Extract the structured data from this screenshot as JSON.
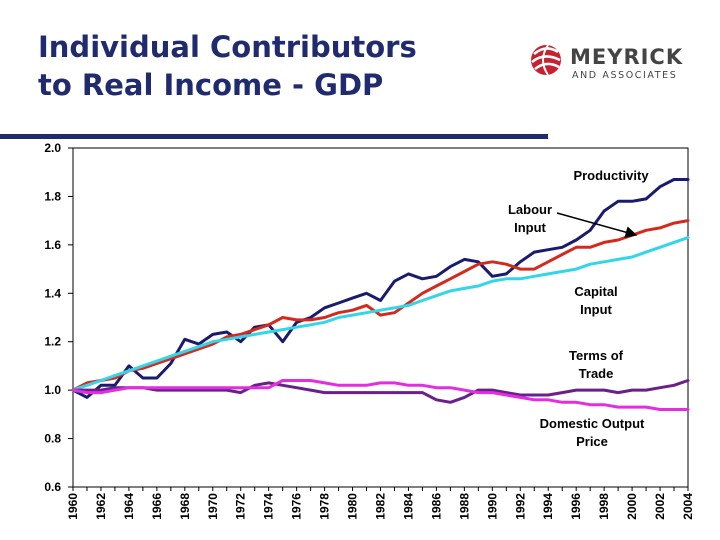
{
  "header": {
    "title_line1": "Individual Contributors",
    "title_line2": "to Real Income - GDP",
    "logo_name": "MEYRICK",
    "logo_sub": "AND ASSOCIATES",
    "logo_icon": "red-globe-icon",
    "title_color": "#1f2b6e",
    "logo_color": "#c8202f"
  },
  "chart_data": {
    "type": "line",
    "title": "",
    "xlabel": "",
    "ylabel": "",
    "x": [
      1960,
      1961,
      1962,
      1963,
      1964,
      1965,
      1966,
      1967,
      1968,
      1969,
      1970,
      1971,
      1972,
      1973,
      1974,
      1975,
      1976,
      1977,
      1978,
      1979,
      1980,
      1981,
      1982,
      1983,
      1984,
      1985,
      1986,
      1987,
      1988,
      1989,
      1990,
      1991,
      1992,
      1993,
      1994,
      1995,
      1996,
      1997,
      1998,
      1999,
      2000,
      2001,
      2002,
      2003,
      2004
    ],
    "xticks": [
      "1960",
      "1962",
      "1964",
      "1966",
      "1968",
      "1970",
      "1972",
      "1974",
      "1976",
      "1978",
      "1980",
      "1982",
      "1984",
      "1986",
      "1988",
      "1990",
      "1992",
      "1994",
      "1996",
      "1998",
      "2000",
      "2002",
      "2004"
    ],
    "yticks": [
      "0.6",
      "0.8",
      "1.0",
      "1.2",
      "1.4",
      "1.6",
      "1.8",
      "2.0"
    ],
    "ylim": [
      0.6,
      2.0
    ],
    "xlim": [
      1960,
      2004
    ],
    "grid": false,
    "series": [
      {
        "label": "Productivity",
        "color": "#1a1a6e",
        "values": [
          1.0,
          0.97,
          1.02,
          1.02,
          1.1,
          1.05,
          1.05,
          1.11,
          1.21,
          1.19,
          1.23,
          1.24,
          1.2,
          1.26,
          1.27,
          1.2,
          1.28,
          1.3,
          1.34,
          1.36,
          1.38,
          1.4,
          1.37,
          1.45,
          1.48,
          1.46,
          1.47,
          1.51,
          1.54,
          1.53,
          1.47,
          1.48,
          1.53,
          1.57,
          1.58,
          1.59,
          1.62,
          1.66,
          1.74,
          1.78,
          1.78,
          1.79,
          1.84,
          1.87,
          1.87
        ]
      },
      {
        "label": "Labour Input",
        "color": "#d42a1e",
        "values": [
          1.0,
          1.03,
          1.04,
          1.05,
          1.08,
          1.09,
          1.11,
          1.13,
          1.15,
          1.17,
          1.19,
          1.22,
          1.23,
          1.25,
          1.27,
          1.3,
          1.29,
          1.29,
          1.3,
          1.32,
          1.33,
          1.35,
          1.31,
          1.32,
          1.36,
          1.4,
          1.43,
          1.46,
          1.49,
          1.52,
          1.53,
          1.52,
          1.5,
          1.5,
          1.53,
          1.56,
          1.59,
          1.59,
          1.61,
          1.62,
          1.64,
          1.66,
          1.67,
          1.69,
          1.7
        ]
      },
      {
        "label": "Capital Input",
        "color": "#33d6e8",
        "values": [
          1.0,
          1.02,
          1.04,
          1.06,
          1.08,
          1.1,
          1.12,
          1.14,
          1.16,
          1.18,
          1.2,
          1.21,
          1.22,
          1.23,
          1.24,
          1.25,
          1.26,
          1.27,
          1.28,
          1.3,
          1.31,
          1.32,
          1.33,
          1.34,
          1.35,
          1.37,
          1.39,
          1.41,
          1.42,
          1.43,
          1.45,
          1.46,
          1.46,
          1.47,
          1.48,
          1.49,
          1.5,
          1.52,
          1.53,
          1.54,
          1.55,
          1.57,
          1.59,
          1.61,
          1.63
        ]
      },
      {
        "label": "Terms of Trade",
        "color": "#6a1f8a",
        "values": [
          1.0,
          1.0,
          1.0,
          1.01,
          1.01,
          1.01,
          1.0,
          1.0,
          1.0,
          1.0,
          1.0,
          1.0,
          0.99,
          1.02,
          1.03,
          1.02,
          1.01,
          1.0,
          0.99,
          0.99,
          0.99,
          0.99,
          0.99,
          0.99,
          0.99,
          0.99,
          0.96,
          0.95,
          0.97,
          1.0,
          1.0,
          0.99,
          0.98,
          0.98,
          0.98,
          0.99,
          1.0,
          1.0,
          1.0,
          0.99,
          1.0,
          1.0,
          1.01,
          1.02,
          1.04
        ]
      },
      {
        "label": "Domestic Output Price",
        "color": "#e22ee0",
        "values": [
          1.0,
          0.99,
          0.99,
          1.0,
          1.01,
          1.01,
          1.01,
          1.01,
          1.01,
          1.01,
          1.01,
          1.01,
          1.01,
          1.01,
          1.01,
          1.04,
          1.04,
          1.04,
          1.03,
          1.02,
          1.02,
          1.02,
          1.03,
          1.03,
          1.02,
          1.02,
          1.01,
          1.01,
          1.0,
          0.99,
          0.99,
          0.98,
          0.97,
          0.96,
          0.96,
          0.95,
          0.95,
          0.94,
          0.94,
          0.93,
          0.93,
          0.93,
          0.92,
          0.92,
          0.92
        ]
      }
    ],
    "annotations": [
      {
        "id": "productivity",
        "lines": [
          "Productivity"
        ]
      },
      {
        "id": "labour",
        "lines": [
          "Labour",
          "Input"
        ]
      },
      {
        "id": "capital",
        "lines": [
          "Capital",
          "Input"
        ]
      },
      {
        "id": "terms",
        "lines": [
          "Terms of",
          "Trade"
        ]
      },
      {
        "id": "price",
        "lines": [
          "Domestic Output",
          "Price"
        ]
      }
    ]
  }
}
